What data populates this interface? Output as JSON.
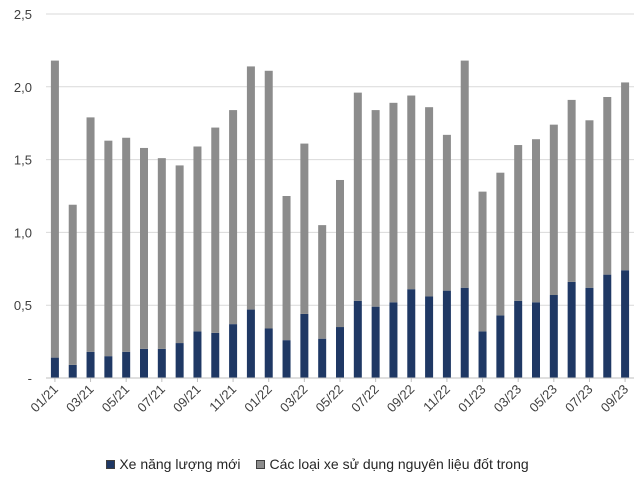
{
  "chart_data": {
    "type": "bar",
    "stacked": true,
    "title": "",
    "xlabel": "",
    "ylabel": "",
    "ylim": [
      0,
      2.5
    ],
    "y_ticks": [
      "-",
      "0,5",
      "1,0",
      "1,5",
      "2,0",
      "2,5"
    ],
    "y_tick_values": [
      0,
      0.5,
      1.0,
      1.5,
      2.0,
      2.5
    ],
    "grid": true,
    "legend_position": "bottom",
    "categories": [
      "01/21",
      "02/21",
      "03/21",
      "04/21",
      "05/21",
      "06/21",
      "07/21",
      "08/21",
      "09/21",
      "10/21",
      "11/21",
      "12/21",
      "01/22",
      "02/22",
      "03/22",
      "04/22",
      "05/22",
      "06/22",
      "07/22",
      "08/22",
      "09/22",
      "10/22",
      "11/22",
      "12/22",
      "01/23",
      "02/23",
      "03/23",
      "04/23",
      "05/23",
      "06/23",
      "07/23",
      "08/23",
      "09/23"
    ],
    "x_tick_labels": [
      "01/21",
      "03/21",
      "05/21",
      "07/21",
      "09/21",
      "11/21",
      "01/22",
      "03/22",
      "05/22",
      "07/22",
      "09/22",
      "11/22",
      "01/23",
      "03/23",
      "05/23",
      "07/23",
      "09/23"
    ],
    "series": [
      {
        "name": "Xe năng lượng mới",
        "color": "#1f3864",
        "values": [
          0.14,
          0.09,
          0.18,
          0.15,
          0.18,
          0.2,
          0.2,
          0.24,
          0.32,
          0.31,
          0.37,
          0.47,
          0.34,
          0.26,
          0.44,
          0.27,
          0.35,
          0.53,
          0.49,
          0.52,
          0.61,
          0.56,
          0.6,
          0.62,
          0.32,
          0.43,
          0.53,
          0.52,
          0.57,
          0.66,
          0.62,
          0.71,
          0.74
        ]
      },
      {
        "name": "Các loại xe sử dụng nguyên liệu đốt trong",
        "color": "#8c8c8c",
        "values": [
          2.04,
          1.1,
          1.61,
          1.48,
          1.47,
          1.38,
          1.31,
          1.22,
          1.27,
          1.41,
          1.47,
          1.67,
          1.77,
          0.99,
          1.17,
          0.78,
          1.01,
          1.43,
          1.35,
          1.37,
          1.33,
          1.3,
          1.07,
          1.56,
          0.96,
          0.98,
          1.07,
          1.12,
          1.17,
          1.25,
          1.15,
          1.22,
          1.29
        ]
      }
    ]
  }
}
